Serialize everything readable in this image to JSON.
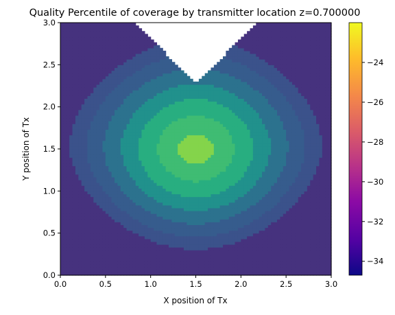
{
  "chart_data": {
    "type": "contourf",
    "title": "Quality Percentile of coverage by transmitter location z=0.700000",
    "xlabel": "X position of Tx",
    "ylabel": "Y position of Tx",
    "xlim": [
      0.0,
      3.0
    ],
    "ylim": [
      0.0,
      3.0
    ],
    "x_ticks": [
      "0.0",
      "0.5",
      "1.0",
      "1.5",
      "2.0",
      "2.5",
      "3.0"
    ],
    "y_ticks": [
      "0.0",
      "0.5",
      "1.0",
      "1.5",
      "2.0",
      "2.5",
      "3.0"
    ],
    "colorbar": {
      "colormap": "plasma",
      "range": [
        -34.7,
        -22.0
      ],
      "ticks": [
        "−24",
        "−26",
        "−28",
        "−30",
        "−32",
        "−34"
      ],
      "tick_values": [
        -24,
        -26,
        -28,
        -30,
        -32,
        -34
      ]
    },
    "plot_colormap": "viridis",
    "levels": [
      -34.7,
      -33.1,
      -31.5,
      -29.9,
      -28.3,
      -26.8,
      -25.2,
      -23.6,
      -22.0
    ],
    "grid_x": [
      0.0,
      0.25,
      0.5,
      0.75,
      1.0,
      1.25,
      1.5,
      1.75,
      2.0,
      2.25,
      2.5,
      2.75,
      3.0
    ],
    "grid_y": [
      0.0,
      0.25,
      0.5,
      0.75,
      1.0,
      1.25,
      1.5,
      1.75,
      2.0,
      2.25,
      2.5,
      2.75,
      3.0
    ],
    "masked_region": "top-center wedge, no data (white)",
    "peak": {
      "x": 1.5,
      "y": 1.5,
      "value": -22.5
    },
    "level_colors": [
      "#46327e",
      "#3b528b",
      "#365c8d",
      "#2c728e",
      "#21918c",
      "#28ae80",
      "#3fbc73",
      "#84d44b",
      "#dde318"
    ]
  }
}
